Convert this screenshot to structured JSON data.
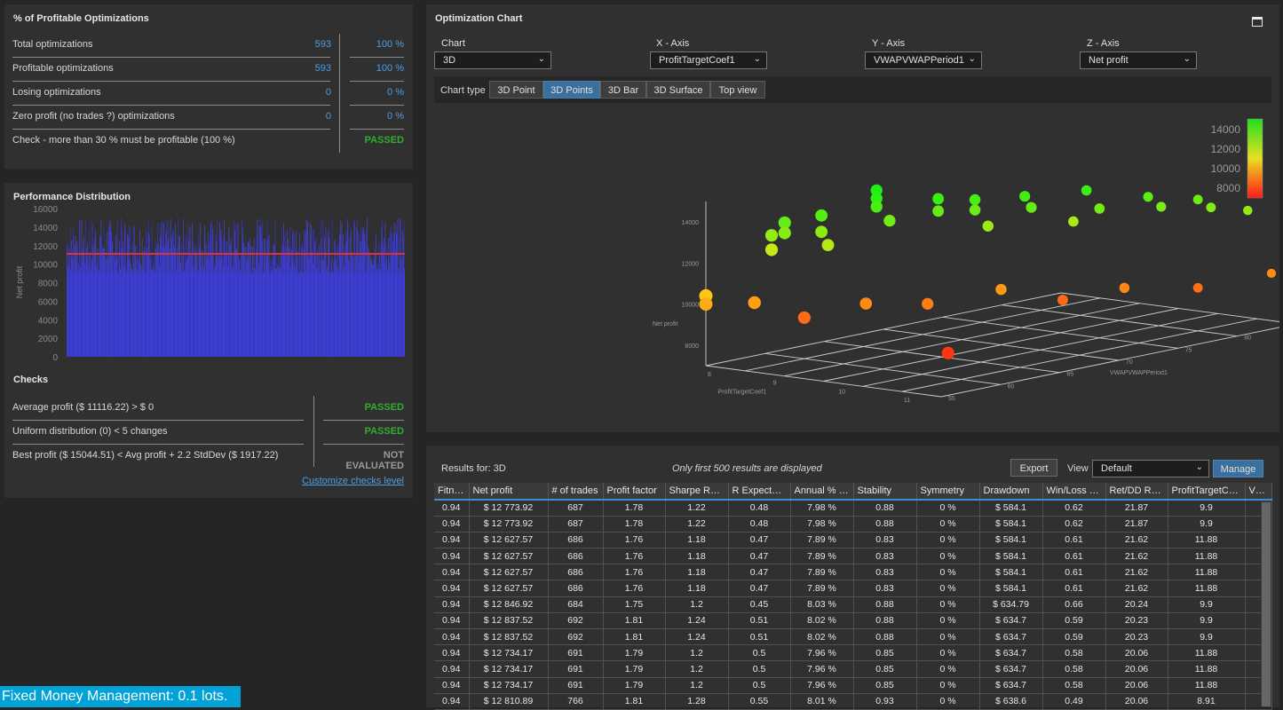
{
  "stats": {
    "title": "% of Profitable Optimizations",
    "rows": [
      {
        "label": "Total optimizations",
        "value": "593",
        "pct": "100 %"
      },
      {
        "label": "Profitable optimizations",
        "value": "593",
        "pct": "100 %"
      },
      {
        "label": "Losing optimizations",
        "value": "0",
        "pct": "0 %"
      },
      {
        "label": "Zero profit (no trades ?) optimizations",
        "value": "0",
        "pct": "0 %"
      },
      {
        "label": "Check - more than 30 % must be profitable (100 %)",
        "value": "",
        "pct": "PASSED"
      }
    ]
  },
  "performance": {
    "title": "Performance Distribution",
    "checks_title": "Checks",
    "checks": [
      {
        "label": "Average profit ($ 11116.22) > $ 0",
        "result": "PASSED"
      },
      {
        "label": "Uniform distribution (0) < 5 changes",
        "result": "PASSED"
      },
      {
        "label": "Best profit ($ 15044.51) < Avg profit + 2.2 StdDev ($ 1917.22)",
        "result": "NOT EVALUATED"
      }
    ],
    "customize_link": "Customize checks level"
  },
  "chart_data": [
    {
      "type": "bar",
      "title": "",
      "xlabel": "",
      "ylabel": "Net profit",
      "ylim": [
        0,
        16000
      ],
      "yticks": [
        "16000",
        "14000",
        "12000",
        "10000",
        "8000",
        "6000",
        "4000",
        "2000",
        "0"
      ],
      "bar_count": 593,
      "average_line": 11116.22,
      "value_range": [
        9000,
        15044.51
      ],
      "bar_color": "#3a3ac8",
      "line_color": "#e03030"
    },
    {
      "type": "scatter",
      "title": "3D Points",
      "xlabel": "ProfitTargetCoef1",
      "ylabel": "Net profit",
      "zlabel": "VWAPVWAPPeriod1",
      "x_ticks": [
        "8",
        "9",
        "10",
        "11"
      ],
      "y_ticks": [
        "8000",
        "10000",
        "12000",
        "14000"
      ],
      "z_ticks": [
        "55",
        "60",
        "65",
        "70",
        "75",
        "80",
        "85"
      ],
      "colorbar_ticks": [
        "14000",
        "12000",
        "10000",
        "8000"
      ],
      "color_low": "#ff1a1a",
      "color_high": "#20e020",
      "points": [
        {
          "x": 8.0,
          "z": 55,
          "y": 10400
        },
        {
          "x": 8.0,
          "z": 55,
          "y": 10000
        },
        {
          "x": 8.1,
          "z": 60,
          "y": 12100
        },
        {
          "x": 8.1,
          "z": 60,
          "y": 12800
        },
        {
          "x": 8.3,
          "z": 60,
          "y": 13500
        },
        {
          "x": 8.3,
          "z": 60,
          "y": 13000
        },
        {
          "x": 8.5,
          "z": 62,
          "y": 13700
        },
        {
          "x": 8.5,
          "z": 62,
          "y": 12900
        },
        {
          "x": 8.6,
          "z": 62,
          "y": 12300
        },
        {
          "x": 8.8,
          "z": 65,
          "y": 14700
        },
        {
          "x": 8.8,
          "z": 65,
          "y": 14300
        },
        {
          "x": 8.8,
          "z": 65,
          "y": 13900
        },
        {
          "x": 9.0,
          "z": 65,
          "y": 13300
        },
        {
          "x": 9.2,
          "z": 68,
          "y": 14100
        },
        {
          "x": 9.2,
          "z": 68,
          "y": 13500
        },
        {
          "x": 9.4,
          "z": 70,
          "y": 13900
        },
        {
          "x": 9.4,
          "z": 70,
          "y": 13400
        },
        {
          "x": 9.6,
          "z": 70,
          "y": 12700
        },
        {
          "x": 9.8,
          "z": 72,
          "y": 14000
        },
        {
          "x": 9.9,
          "z": 72,
          "y": 13500
        },
        {
          "x": 10.0,
          "z": 75,
          "y": 12500
        },
        {
          "x": 10.2,
          "z": 75,
          "y": 14100
        },
        {
          "x": 10.4,
          "z": 75,
          "y": 13300
        },
        {
          "x": 10.6,
          "z": 78,
          "y": 13600
        },
        {
          "x": 10.8,
          "z": 78,
          "y": 13200
        },
        {
          "x": 11.0,
          "z": 80,
          "y": 13400
        },
        {
          "x": 11.2,
          "z": 80,
          "y": 13100
        },
        {
          "x": 11.4,
          "z": 82,
          "y": 12800
        },
        {
          "x": 8.2,
          "z": 58,
          "y": 9800
        },
        {
          "x": 8.6,
          "z": 60,
          "y": 9000
        },
        {
          "x": 9.0,
          "z": 63,
          "y": 9500
        },
        {
          "x": 9.4,
          "z": 66,
          "y": 9300
        },
        {
          "x": 9.8,
          "z": 70,
          "y": 9700
        },
        {
          "x": 10.2,
          "z": 73,
          "y": 9000
        },
        {
          "x": 10.6,
          "z": 76,
          "y": 9400
        },
        {
          "x": 11.0,
          "z": 80,
          "y": 9100
        },
        {
          "x": 11.4,
          "z": 84,
          "y": 9500
        },
        {
          "x": 10.8,
          "z": 60,
          "y": 8200
        }
      ]
    }
  ],
  "optimization": {
    "title": "Optimization Chart",
    "chart_label": "Chart",
    "chart_value": "3D",
    "x_label": "X - Axis",
    "x_value": "ProfitTargetCoef1",
    "y_label": "Y - Axis",
    "y_value": "VWAPVWAPPeriod1",
    "z_label": "Z - Axis",
    "z_value": "Net profit",
    "chart_type_label": "Chart type",
    "chart_types": [
      "3D Point",
      "3D Points",
      "3D Bar",
      "3D Surface",
      "Top view"
    ],
    "active_chart_type": "3D Points"
  },
  "results": {
    "label": "Results for: 3D",
    "notice": "Only first 500 results are displayed",
    "export_label": "Export",
    "view_label": "View",
    "view_value": "Default",
    "manage_label": "Manage",
    "columns": [
      "Fitne...",
      "Net profit",
      "# of trades",
      "Profit factor",
      "Sharpe Ratio",
      "R Expectancy",
      "Annual % R...",
      "Stability",
      "Symmetry",
      "Drawdown",
      "Win/Loss ra...",
      "Ret/DD Ratio",
      "ProfitTargetCoe...",
      "VWAF"
    ],
    "rows": [
      [
        "0.94",
        "$ 12 773.92",
        "687",
        "1.78",
        "1.22",
        "0.48",
        "7.98 %",
        "0.88",
        "0 %",
        "$ 584.1",
        "0.62",
        "21.87",
        "9.9",
        ""
      ],
      [
        "0.94",
        "$ 12 773.92",
        "687",
        "1.78",
        "1.22",
        "0.48",
        "7.98 %",
        "0.88",
        "0 %",
        "$ 584.1",
        "0.62",
        "21.87",
        "9.9",
        ""
      ],
      [
        "0.94",
        "$ 12 627.57",
        "686",
        "1.76",
        "1.18",
        "0.47",
        "7.89 %",
        "0.83",
        "0 %",
        "$ 584.1",
        "0.61",
        "21.62",
        "11.88",
        ""
      ],
      [
        "0.94",
        "$ 12 627.57",
        "686",
        "1.76",
        "1.18",
        "0.47",
        "7.89 %",
        "0.83",
        "0 %",
        "$ 584.1",
        "0.61",
        "21.62",
        "11.88",
        ""
      ],
      [
        "0.94",
        "$ 12 627.57",
        "686",
        "1.76",
        "1.18",
        "0.47",
        "7.89 %",
        "0.83",
        "0 %",
        "$ 584.1",
        "0.61",
        "21.62",
        "11.88",
        ""
      ],
      [
        "0.94",
        "$ 12 627.57",
        "686",
        "1.76",
        "1.18",
        "0.47",
        "7.89 %",
        "0.83",
        "0 %",
        "$ 584.1",
        "0.61",
        "21.62",
        "11.88",
        ""
      ],
      [
        "0.94",
        "$ 12 846.92",
        "684",
        "1.75",
        "1.2",
        "0.45",
        "8.03 %",
        "0.88",
        "0 %",
        "$ 634.79",
        "0.66",
        "20.24",
        "9.9",
        ""
      ],
      [
        "0.94",
        "$ 12 837.52",
        "692",
        "1.81",
        "1.24",
        "0.51",
        "8.02 %",
        "0.88",
        "0 %",
        "$ 634.7",
        "0.59",
        "20.23",
        "9.9",
        ""
      ],
      [
        "0.94",
        "$ 12 837.52",
        "692",
        "1.81",
        "1.24",
        "0.51",
        "8.02 %",
        "0.88",
        "0 %",
        "$ 634.7",
        "0.59",
        "20.23",
        "9.9",
        ""
      ],
      [
        "0.94",
        "$ 12 734.17",
        "691",
        "1.79",
        "1.2",
        "0.5",
        "7.96 %",
        "0.85",
        "0 %",
        "$ 634.7",
        "0.58",
        "20.06",
        "11.88",
        ""
      ],
      [
        "0.94",
        "$ 12 734.17",
        "691",
        "1.79",
        "1.2",
        "0.5",
        "7.96 %",
        "0.85",
        "0 %",
        "$ 634.7",
        "0.58",
        "20.06",
        "11.88",
        ""
      ],
      [
        "0.94",
        "$ 12 734.17",
        "691",
        "1.79",
        "1.2",
        "0.5",
        "7.96 %",
        "0.85",
        "0 %",
        "$ 634.7",
        "0.58",
        "20.06",
        "11.88",
        ""
      ],
      [
        "0.94",
        "$ 12 810.89",
        "766",
        "1.81",
        "1.28",
        "0.55",
        "8.01 %",
        "0.93",
        "0 %",
        "$ 638.6",
        "0.49",
        "20.06",
        "8.91",
        ""
      ]
    ]
  },
  "status": {
    "text": "Fixed Money Management: 0.1 lots."
  },
  "colors": {
    "accent": "#3b6f9c",
    "link": "#4a9fe8",
    "passed": "#2fae2f",
    "status_bar": "#00a2d8"
  }
}
